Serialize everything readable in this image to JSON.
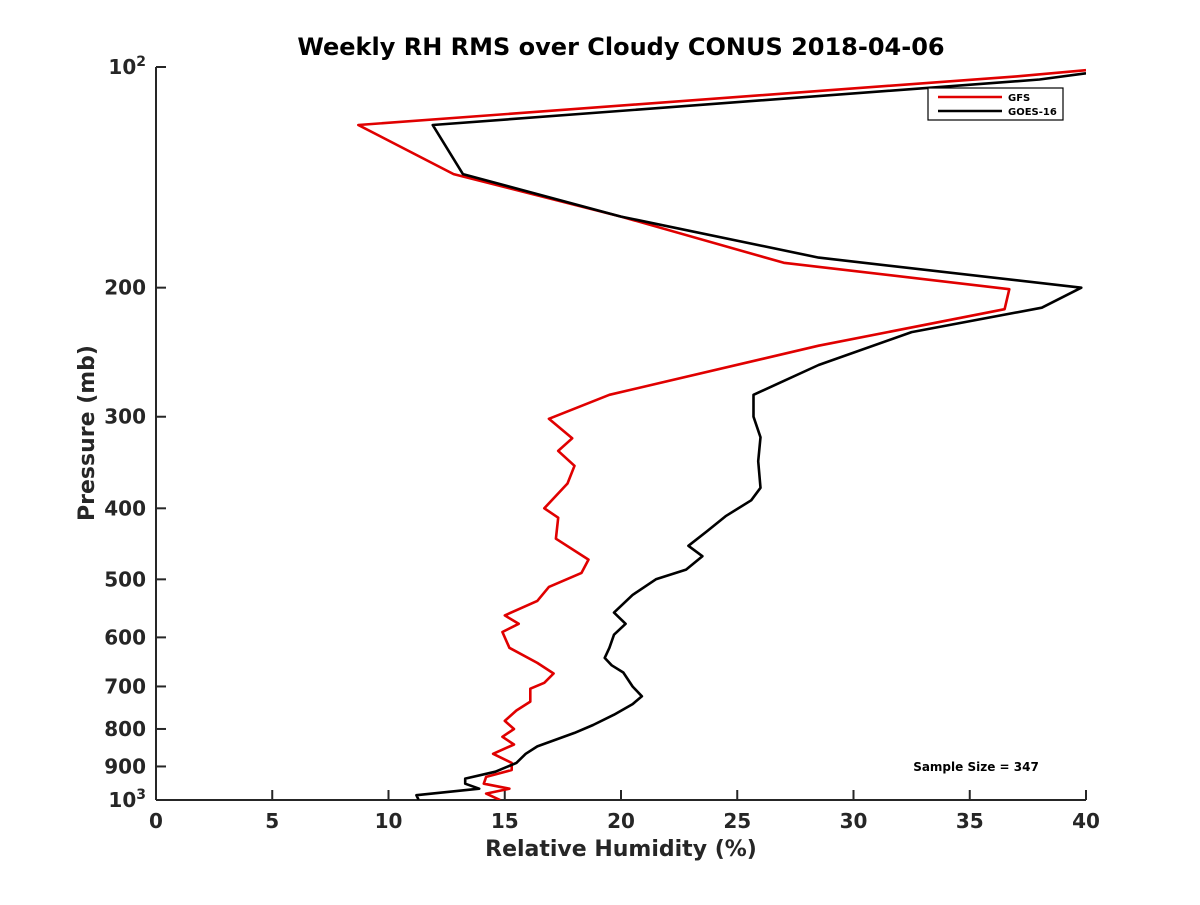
{
  "chart_data": {
    "type": "line",
    "title": "Weekly RH RMS over Cloudy CONUS 2018-04-06",
    "xlabel": "Relative Humidity (%)",
    "ylabel": "Pressure (mb)",
    "xlim": [
      0,
      40
    ],
    "ylim": [
      100,
      1000
    ],
    "y_scale": "log",
    "y_reversed": true,
    "x_ticks": [
      "0",
      "5",
      "10",
      "15",
      "20",
      "25",
      "30",
      "35",
      "40"
    ],
    "y_ticks": [
      {
        "value": 100,
        "base": "10",
        "exp": "2"
      },
      {
        "value": 200,
        "label": "200"
      },
      {
        "value": 300,
        "label": "300"
      },
      {
        "value": 400,
        "label": "400"
      },
      {
        "value": 500,
        "label": "500"
      },
      {
        "value": 600,
        "label": "600"
      },
      {
        "value": 700,
        "label": "700"
      },
      {
        "value": 800,
        "label": "800"
      },
      {
        "value": 900,
        "label": "900"
      },
      {
        "value": 1000,
        "base": "10",
        "exp": "3"
      }
    ],
    "legend_position": "top-right",
    "annotation": "Sample Size = 347",
    "series": [
      {
        "name": "GFS",
        "color": "#e00000",
        "points": [
          [
            40.0,
            101
          ],
          [
            37.0,
            103
          ],
          [
            8.7,
            120
          ],
          [
            12.8,
            140
          ],
          [
            20.0,
            160
          ],
          [
            27.0,
            185
          ],
          [
            36.7,
            201
          ],
          [
            36.5,
            214
          ],
          [
            28.5,
            240
          ],
          [
            19.5,
            280
          ],
          [
            16.9,
            302
          ],
          [
            17.9,
            321
          ],
          [
            17.3,
            334
          ],
          [
            18.0,
            350
          ],
          [
            17.7,
            370
          ],
          [
            16.7,
            400
          ],
          [
            17.3,
            412
          ],
          [
            17.2,
            440
          ],
          [
            18.6,
            470
          ],
          [
            18.3,
            490
          ],
          [
            16.9,
            512
          ],
          [
            16.4,
            535
          ],
          [
            15.0,
            560
          ],
          [
            15.6,
            575
          ],
          [
            14.9,
            590
          ],
          [
            15.2,
            620
          ],
          [
            16.4,
            650
          ],
          [
            17.1,
            672
          ],
          [
            16.7,
            692
          ],
          [
            16.1,
            705
          ],
          [
            16.1,
            734
          ],
          [
            15.5,
            755
          ],
          [
            15.0,
            780
          ],
          [
            15.4,
            800
          ],
          [
            14.9,
            820
          ],
          [
            15.4,
            840
          ],
          [
            14.5,
            865
          ],
          [
            15.3,
            890
          ],
          [
            15.3,
            910
          ],
          [
            14.2,
            930
          ],
          [
            14.1,
            950
          ],
          [
            15.2,
            965
          ],
          [
            14.2,
            980
          ],
          [
            14.8,
            1000
          ]
        ]
      },
      {
        "name": "GOES-16",
        "color": "#000000",
        "points": [
          [
            40.0,
            102
          ],
          [
            38.0,
            104
          ],
          [
            11.9,
            120
          ],
          [
            13.2,
            140
          ],
          [
            20.0,
            160
          ],
          [
            28.5,
            182
          ],
          [
            39.8,
            200
          ],
          [
            38.1,
            213
          ],
          [
            32.5,
            230
          ],
          [
            28.5,
            255
          ],
          [
            25.7,
            280
          ],
          [
            25.7,
            300
          ],
          [
            26.0,
            320
          ],
          [
            25.9,
            345
          ],
          [
            26.0,
            375
          ],
          [
            25.6,
            390
          ],
          [
            24.5,
            410
          ],
          [
            23.7,
            430
          ],
          [
            22.9,
            450
          ],
          [
            23.5,
            465
          ],
          [
            22.8,
            485
          ],
          [
            21.5,
            500
          ],
          [
            20.5,
            525
          ],
          [
            19.7,
            555
          ],
          [
            20.2,
            575
          ],
          [
            19.7,
            595
          ],
          [
            19.5,
            620
          ],
          [
            19.3,
            640
          ],
          [
            19.6,
            655
          ],
          [
            20.1,
            670
          ],
          [
            20.5,
            700
          ],
          [
            20.9,
            722
          ],
          [
            20.5,
            740
          ],
          [
            19.7,
            765
          ],
          [
            18.8,
            790
          ],
          [
            18.0,
            810
          ],
          [
            16.4,
            845
          ],
          [
            15.9,
            865
          ],
          [
            15.5,
            890
          ],
          [
            14.6,
            915
          ],
          [
            13.3,
            935
          ],
          [
            13.3,
            950
          ],
          [
            13.9,
            965
          ],
          [
            11.2,
            985
          ],
          [
            11.3,
            1000
          ]
        ]
      }
    ]
  }
}
